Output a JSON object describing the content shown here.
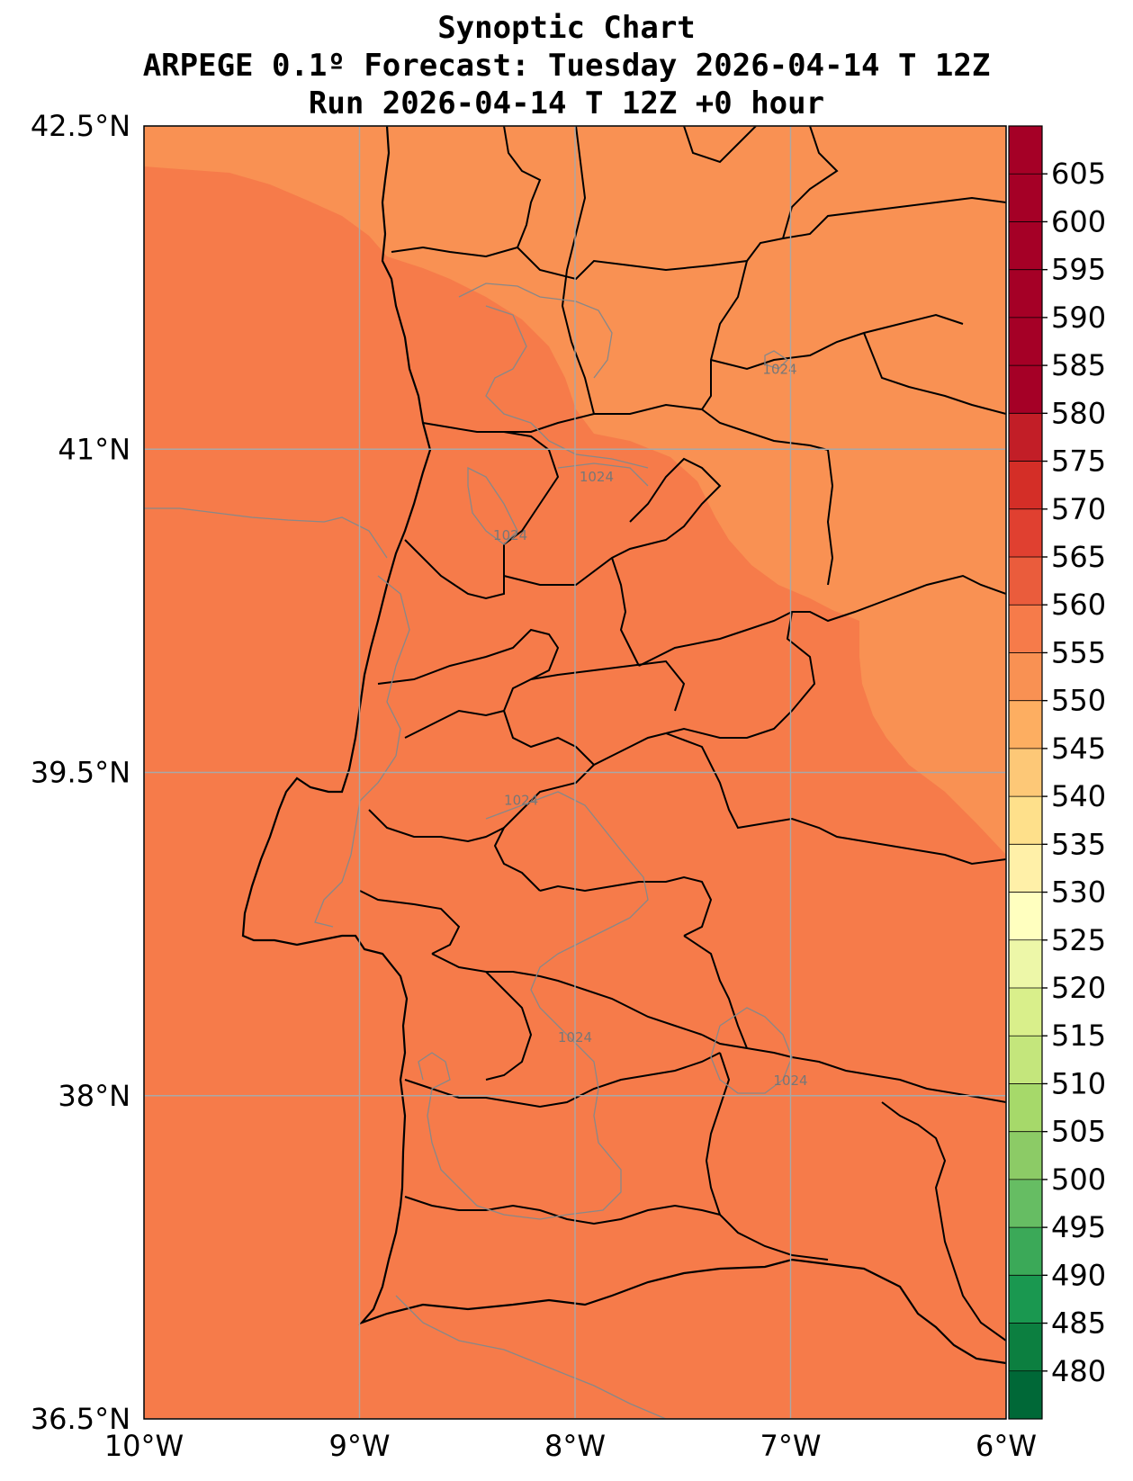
{
  "title": {
    "line1": "Synoptic Chart",
    "line2": "ARPEGE 0.1º Forecast: Tuesday 2026-04-14 T 12Z",
    "line3": "Run 2026-04-14 T 12Z +0 hour"
  },
  "map": {
    "lon_range": [
      -10,
      -6
    ],
    "lat_range": [
      36.5,
      42.5
    ],
    "gridlines": true,
    "lat_ticks": [
      {
        "value": 42.5,
        "label": "42.5°N"
      },
      {
        "value": 41.0,
        "label": "41°N"
      },
      {
        "value": 39.5,
        "label": "39.5°N"
      },
      {
        "value": 38.0,
        "label": "38°N"
      },
      {
        "value": 36.5,
        "label": "36.5°N"
      }
    ],
    "lon_ticks": [
      {
        "value": -10,
        "label": "10°W"
      },
      {
        "value": -9,
        "label": "9°W"
      },
      {
        "value": -8,
        "label": "8°W"
      },
      {
        "value": -7,
        "label": "7°W"
      },
      {
        "value": -6,
        "label": "6°W"
      }
    ],
    "fill_colors": {
      "band_575_580": "#f67b4a",
      "band_570_575": "#f99153"
    },
    "isobar_labels": [
      {
        "text": "1024",
        "lon": -7.05,
        "lat": 41.35
      },
      {
        "text": "1024",
        "lon": -7.9,
        "lat": 40.85
      },
      {
        "text": "1024",
        "lon": -8.3,
        "lat": 40.58
      },
      {
        "text": "1024",
        "lon": -8.25,
        "lat": 39.35
      },
      {
        "text": "1024",
        "lon": -8.0,
        "lat": 38.25
      },
      {
        "text": "1024",
        "lon": -7.0,
        "lat": 38.05
      }
    ]
  },
  "colorbar": {
    "min": 475,
    "max": 610,
    "ticks": [
      480,
      485,
      490,
      495,
      500,
      505,
      510,
      515,
      520,
      525,
      530,
      535,
      540,
      545,
      550,
      555,
      560,
      565,
      570,
      575,
      580,
      585,
      590,
      595,
      600,
      605
    ],
    "tick_labels": [
      "480",
      "485",
      "490",
      "495",
      "500",
      "505",
      "510",
      "515",
      "520",
      "525",
      "530",
      "535",
      "540",
      "545",
      "550",
      "555",
      "560",
      "565",
      "570",
      "575",
      "580",
      "585",
      "590",
      "595",
      "600",
      "605"
    ],
    "colors": [
      "#006837",
      "#0c7f40",
      "#1a9850",
      "#3ba958",
      "#66bd63",
      "#8ccb66",
      "#a6d96a",
      "#c4e67c",
      "#d9ef8b",
      "#edf7a8",
      "#ffffbf",
      "#fff0a8",
      "#fee08b",
      "#fdc877",
      "#fdae61",
      "#f99153",
      "#f67b4a",
      "#ea5c3c",
      "#e04030",
      "#d42e27",
      "#c21e27",
      "#a50026",
      "#a50026",
      "#a50026",
      "#a50026",
      "#a50026",
      "#a50026"
    ]
  }
}
